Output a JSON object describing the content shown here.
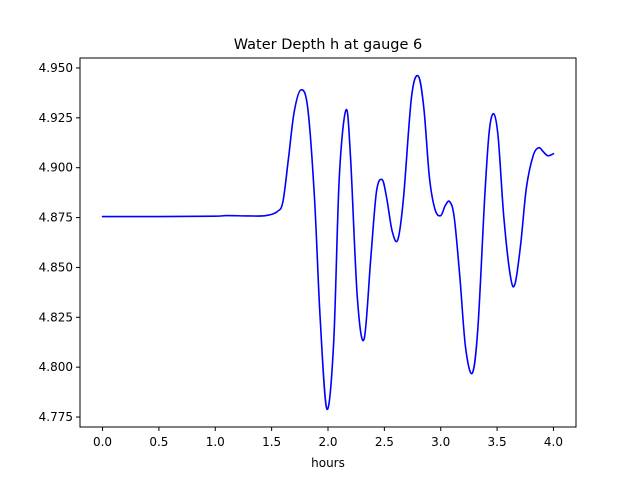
{
  "chart_data": {
    "type": "line",
    "title": "Water Depth h at gauge 6",
    "xlabel": "hours",
    "ylabel": "",
    "xlim": [
      -0.2,
      4.2
    ],
    "ylim": [
      4.77,
      4.955
    ],
    "xticks": [
      0.0,
      0.5,
      1.0,
      1.5,
      2.0,
      2.5,
      3.0,
      3.5,
      4.0
    ],
    "xtick_labels": [
      "0.0",
      "0.5",
      "1.0",
      "1.5",
      "2.0",
      "2.5",
      "3.0",
      "3.5",
      "4.0"
    ],
    "yticks": [
      4.775,
      4.8,
      4.825,
      4.85,
      4.875,
      4.9,
      4.925,
      4.95
    ],
    "ytick_labels": [
      "4.775",
      "4.800",
      "4.825",
      "4.850",
      "4.875",
      "4.900",
      "4.925",
      "4.950"
    ],
    "grid": false,
    "series": [
      {
        "color": "#0000ff",
        "x": [
          0.0,
          0.5,
          1.0,
          1.1,
          1.3,
          1.45,
          1.55,
          1.6,
          1.65,
          1.7,
          1.76,
          1.82,
          1.88,
          1.93,
          1.99,
          2.05,
          2.1,
          2.16,
          2.2,
          2.26,
          2.32,
          2.38,
          2.43,
          2.48,
          2.52,
          2.57,
          2.62,
          2.67,
          2.74,
          2.8,
          2.85,
          2.9,
          2.95,
          3.0,
          3.04,
          3.08,
          3.12,
          3.17,
          3.22,
          3.28,
          3.33,
          3.39,
          3.43,
          3.47,
          3.51,
          3.56,
          3.62,
          3.66,
          3.71,
          3.76,
          3.82,
          3.87,
          3.91,
          3.95,
          4.0
        ],
        "y": [
          4.8755,
          4.8755,
          4.8757,
          4.876,
          4.8758,
          4.876,
          4.878,
          4.883,
          4.905,
          4.928,
          4.939,
          4.93,
          4.885,
          4.825,
          4.779,
          4.812,
          4.895,
          4.929,
          4.905,
          4.835,
          4.814,
          4.855,
          4.888,
          4.894,
          4.885,
          4.868,
          4.864,
          4.885,
          4.935,
          4.946,
          4.93,
          4.895,
          4.879,
          4.876,
          4.881,
          4.883,
          4.875,
          4.845,
          4.81,
          4.797,
          4.82,
          4.885,
          4.918,
          4.927,
          4.915,
          4.875,
          4.845,
          4.842,
          4.862,
          4.89,
          4.906,
          4.91,
          4.908,
          4.906,
          4.907
        ]
      }
    ]
  }
}
